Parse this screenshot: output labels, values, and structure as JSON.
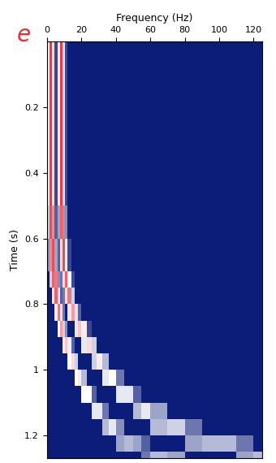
{
  "chart_data": {
    "type": "heatmap",
    "x_label": "Frequency (Hz)",
    "y_label": "Time (s)",
    "annotation": "e",
    "xlim": [
      0,
      125
    ],
    "ylim": [
      1.27,
      0.0
    ],
    "xticks": [
      0,
      20,
      40,
      60,
      80,
      100,
      120
    ],
    "yticks": [
      0.2,
      0.4,
      0.6,
      0.8,
      1,
      1.2
    ],
    "x_edges": [
      0,
      1.5,
      3,
      4.5,
      6,
      7.5,
      9,
      10.5,
      12,
      14,
      16,
      18,
      20,
      23,
      26,
      29,
      32,
      36,
      40,
      45,
      50,
      55,
      60,
      70,
      80,
      90,
      100,
      110,
      120,
      125
    ],
    "y_edges": [
      0,
      0.1,
      0.2,
      0.3,
      0.4,
      0.5,
      0.6,
      0.7,
      0.75,
      0.8,
      0.85,
      0.9,
      0.95,
      1.0,
      1.05,
      1.1,
      1.15,
      1.2,
      1.25,
      1.27
    ],
    "clim": [
      0,
      1
    ],
    "cells": [
      [
        0.55,
        1.0,
        0.6,
        0.1,
        0.55,
        1.0,
        0.6,
        0.1,
        0,
        0,
        0,
        0,
        0,
        0,
        0,
        0,
        0,
        0,
        0,
        0,
        0,
        0,
        0,
        0,
        0,
        0,
        0,
        0,
        0
      ],
      [
        0.55,
        1.0,
        0.6,
        0.1,
        0.55,
        1.0,
        0.6,
        0.1,
        0,
        0,
        0,
        0,
        0,
        0,
        0,
        0,
        0,
        0,
        0,
        0,
        0,
        0,
        0,
        0,
        0,
        0,
        0,
        0,
        0
      ],
      [
        0.55,
        1.0,
        0.6,
        0.1,
        0.55,
        1.0,
        0.6,
        0.1,
        0,
        0,
        0,
        0,
        0,
        0,
        0,
        0,
        0,
        0,
        0,
        0,
        0,
        0,
        0,
        0,
        0,
        0,
        0,
        0,
        0
      ],
      [
        0.55,
        1.0,
        0.6,
        0.1,
        0.55,
        1.0,
        0.6,
        0.1,
        0,
        0,
        0,
        0,
        0,
        0,
        0,
        0,
        0,
        0,
        0,
        0,
        0,
        0,
        0,
        0,
        0,
        0,
        0,
        0,
        0
      ],
      [
        0.55,
        1.0,
        0.6,
        0.1,
        0.55,
        1.0,
        0.6,
        0.1,
        0,
        0,
        0,
        0,
        0,
        0,
        0,
        0,
        0,
        0,
        0,
        0,
        0,
        0,
        0,
        0,
        0,
        0,
        0,
        0,
        0
      ],
      [
        0.4,
        0.95,
        0.8,
        0.15,
        0.3,
        0.9,
        0.85,
        0.25,
        0,
        0,
        0,
        0,
        0,
        0,
        0,
        0,
        0,
        0,
        0,
        0,
        0,
        0,
        0,
        0,
        0,
        0,
        0,
        0,
        0
      ],
      [
        0.25,
        0.8,
        0.95,
        0.3,
        0.15,
        0.6,
        0.95,
        0.55,
        0.1,
        0,
        0,
        0,
        0,
        0,
        0,
        0,
        0,
        0,
        0,
        0,
        0,
        0,
        0,
        0,
        0,
        0,
        0,
        0,
        0
      ],
      [
        0,
        0.4,
        0.9,
        0.85,
        0.25,
        0.2,
        0.6,
        0.9,
        0.5,
        0.1,
        0,
        0,
        0,
        0,
        0,
        0,
        0,
        0,
        0,
        0,
        0,
        0,
        0,
        0,
        0,
        0,
        0,
        0,
        0
      ],
      [
        0,
        0,
        0.6,
        0.9,
        0.6,
        0.15,
        0.2,
        0.6,
        0.85,
        0.4,
        0,
        0,
        0,
        0,
        0,
        0,
        0,
        0,
        0,
        0,
        0,
        0,
        0,
        0,
        0,
        0,
        0,
        0,
        0
      ],
      [
        0,
        0,
        0,
        0.55,
        0.85,
        0.6,
        0.2,
        0,
        0.45,
        0.75,
        0.6,
        0.15,
        0,
        0,
        0,
        0,
        0,
        0,
        0,
        0,
        0,
        0,
        0,
        0,
        0,
        0,
        0,
        0,
        0
      ],
      [
        0,
        0,
        0,
        0,
        0.5,
        0.75,
        0.65,
        0.25,
        0,
        0,
        0.45,
        0.65,
        0.55,
        0.1,
        0,
        0,
        0,
        0,
        0,
        0,
        0,
        0,
        0,
        0,
        0,
        0,
        0,
        0,
        0
      ],
      [
        0,
        0,
        0,
        0,
        0,
        0,
        0.55,
        0.65,
        0.55,
        0.15,
        0,
        0,
        0.45,
        0.6,
        0.4,
        0,
        0,
        0,
        0,
        0,
        0,
        0,
        0,
        0,
        0,
        0,
        0,
        0,
        0
      ],
      [
        0,
        0,
        0,
        0,
        0,
        0,
        0,
        0,
        0.5,
        0.6,
        0.4,
        0,
        0,
        0,
        0.4,
        0.55,
        0.35,
        0,
        0,
        0,
        0,
        0,
        0,
        0,
        0,
        0,
        0,
        0,
        0
      ],
      [
        0,
        0,
        0,
        0,
        0,
        0,
        0,
        0,
        0,
        0,
        0.5,
        0.55,
        0.35,
        0,
        0,
        0,
        0.45,
        0.5,
        0.2,
        0,
        0,
        0,
        0,
        0,
        0,
        0,
        0,
        0,
        0
      ],
      [
        0,
        0,
        0,
        0,
        0,
        0,
        0,
        0,
        0,
        0,
        0,
        0,
        0.5,
        0.5,
        0.15,
        0,
        0,
        0,
        0.45,
        0.45,
        0.15,
        0,
        0,
        0,
        0,
        0,
        0,
        0,
        0
      ],
      [
        0,
        0,
        0,
        0,
        0,
        0,
        0,
        0,
        0,
        0,
        0,
        0,
        0,
        0,
        0.45,
        0.45,
        0.2,
        0,
        0,
        0,
        0.35,
        0.45,
        0.3,
        0,
        0,
        0,
        0,
        0,
        0
      ],
      [
        0,
        0,
        0,
        0,
        0,
        0,
        0,
        0,
        0,
        0,
        0,
        0,
        0,
        0,
        0,
        0,
        0.35,
        0.45,
        0.25,
        0,
        0,
        0,
        0.35,
        0.4,
        0.2,
        0,
        0,
        0,
        0
      ],
      [
        0,
        0,
        0,
        0,
        0,
        0,
        0,
        0,
        0,
        0,
        0,
        0,
        0,
        0,
        0,
        0,
        0,
        0,
        0.3,
        0.35,
        0.3,
        0.15,
        0,
        0,
        0.3,
        0.35,
        0.35,
        0.2,
        0
      ],
      [
        0,
        0,
        0,
        0,
        0,
        0,
        0,
        0,
        0,
        0,
        0,
        0,
        0,
        0,
        0,
        0,
        0,
        0,
        0,
        0,
        0,
        0.2,
        0.35,
        0.3,
        0,
        0,
        0,
        0.3,
        0.35
      ]
    ]
  }
}
